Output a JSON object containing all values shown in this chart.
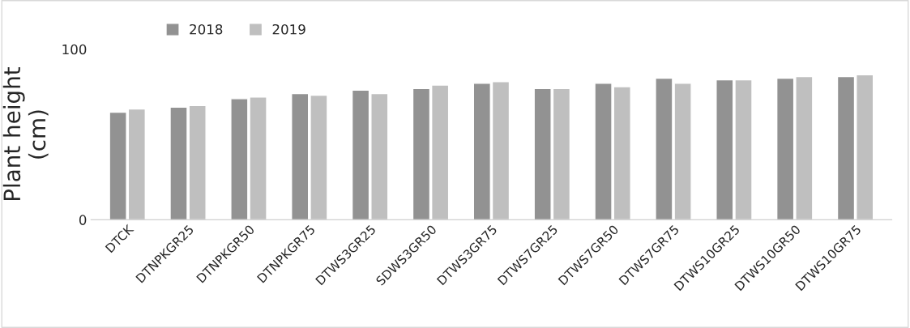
{
  "chart_data": {
    "type": "bar",
    "ylabel": "Plant height\n(cm)",
    "categories": [
      "DTCK",
      "DTNPKGR25",
      "DTNPKGR50",
      "DTNPKGR75",
      "DTWS3GR25",
      "SDWS3GR50",
      "DTWS3GR75",
      "DTWS7GR25",
      "DTWS7GR50",
      "DTWS7GR75",
      "DTWS10GR25",
      "DTWS10GR50",
      "DTWS10GR75"
    ],
    "series": [
      {
        "name": "2018",
        "color": "#929292",
        "values": [
          63,
          66,
          71,
          74,
          76,
          77,
          80,
          77,
          80,
          83,
          82,
          83,
          84
        ]
      },
      {
        "name": "2019",
        "color": "#bfbfbf",
        "values": [
          65,
          67,
          72,
          73,
          74,
          79,
          81,
          77,
          78,
          80,
          82,
          84,
          85
        ]
      }
    ],
    "ylim": [
      0,
      100
    ],
    "yticks": [
      0,
      100
    ],
    "grid": false,
    "legend": "top left"
  }
}
